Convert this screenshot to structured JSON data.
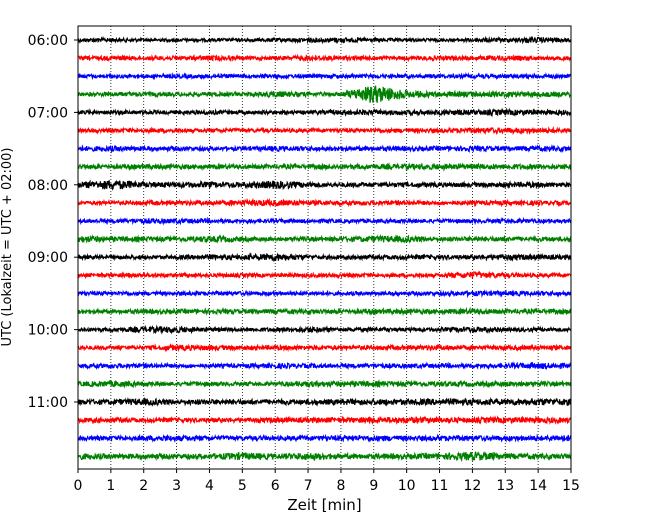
{
  "chart_data": {
    "type": "line",
    "title": "",
    "xlabel": "Zeit  [min]",
    "ylabel": "UTC (Lokalzeit = UTC + 02:00)",
    "xlim": [
      0,
      15
    ],
    "x_ticks": [
      0,
      1,
      2,
      3,
      4,
      5,
      6,
      7,
      8,
      9,
      10,
      11,
      12,
      13,
      14,
      15
    ],
    "y_tick_labels": [
      "06:00",
      "07:00",
      "08:00",
      "09:00",
      "10:00",
      "11:00"
    ],
    "grid": "vertical dotted",
    "legend": "none",
    "trace_colors": [
      "#000000",
      "#ff0000",
      "#0000ff",
      "#008000"
    ],
    "series": [
      {
        "start": "06:00",
        "values": [
          0.6,
          0.6,
          0.5,
          0.5,
          0.5,
          0.5,
          0.6,
          0.7,
          0.8,
          0.6,
          0.5,
          0.5,
          0.6,
          0.7,
          0.9,
          0.6
        ]
      },
      {
        "start": "06:15",
        "values": [
          0.6,
          0.7,
          0.6,
          0.7,
          0.8,
          0.6,
          0.6,
          0.8,
          0.7,
          0.6,
          0.6,
          0.7,
          0.6,
          0.8,
          0.6,
          0.6
        ]
      },
      {
        "start": "06:30",
        "values": [
          0.6,
          0.6,
          0.6,
          0.6,
          0.7,
          0.6,
          0.6,
          0.6,
          0.6,
          0.6,
          0.6,
          0.6,
          0.6,
          0.6,
          0.6,
          0.6
        ]
      },
      {
        "start": "06:45",
        "values": [
          0.6,
          0.7,
          0.7,
          0.6,
          0.7,
          0.6,
          1.0,
          0.7,
          0.6,
          3.0,
          1.2,
          0.8,
          0.9,
          0.8,
          0.8,
          0.7
        ]
      },
      {
        "start": "07:00",
        "values": [
          0.7,
          0.6,
          0.6,
          0.6,
          0.7,
          0.6,
          0.6,
          0.6,
          0.8,
          0.8,
          0.7,
          0.8,
          0.8,
          0.9,
          0.8,
          0.7
        ]
      },
      {
        "start": "07:15",
        "values": [
          0.6,
          0.6,
          0.7,
          0.6,
          0.6,
          0.6,
          0.6,
          0.6,
          0.6,
          0.6,
          0.7,
          0.7,
          0.8,
          0.9,
          0.8,
          0.7
        ]
      },
      {
        "start": "07:30",
        "values": [
          0.7,
          0.9,
          0.7,
          0.7,
          0.6,
          0.6,
          0.8,
          0.7,
          0.7,
          0.7,
          0.7,
          0.7,
          0.8,
          0.7,
          0.8,
          0.7
        ]
      },
      {
        "start": "07:45",
        "values": [
          0.7,
          0.7,
          0.8,
          0.7,
          0.7,
          0.7,
          0.7,
          0.7,
          0.8,
          0.8,
          0.8,
          0.9,
          0.8,
          0.8,
          0.8,
          0.7
        ]
      },
      {
        "start": "08:00",
        "values": [
          0.9,
          1.6,
          0.9,
          0.8,
          0.9,
          0.8,
          1.3,
          0.8,
          0.7,
          0.7,
          0.7,
          0.7,
          0.7,
          0.8,
          0.8,
          0.7
        ]
      },
      {
        "start": "08:15",
        "values": [
          0.6,
          0.6,
          0.7,
          0.7,
          0.7,
          0.9,
          1.0,
          0.8,
          0.7,
          0.7,
          0.7,
          0.6,
          0.7,
          0.7,
          0.7,
          0.6
        ]
      },
      {
        "start": "08:30",
        "values": [
          0.6,
          0.6,
          0.8,
          0.8,
          0.7,
          0.6,
          0.6,
          0.6,
          0.6,
          0.6,
          0.6,
          0.6,
          0.6,
          0.7,
          0.6,
          0.6
        ]
      },
      {
        "start": "08:45",
        "values": [
          1.1,
          0.8,
          0.8,
          0.7,
          1.0,
          0.7,
          0.6,
          0.7,
          0.7,
          1.0,
          1.0,
          0.7,
          0.7,
          0.8,
          0.7,
          0.7
        ]
      },
      {
        "start": "09:00",
        "values": [
          0.6,
          0.6,
          0.6,
          0.6,
          0.8,
          0.8,
          1.2,
          0.7,
          0.6,
          0.7,
          0.7,
          0.7,
          0.7,
          0.9,
          0.8,
          0.7
        ]
      },
      {
        "start": "09:15",
        "values": [
          0.6,
          0.6,
          0.6,
          0.6,
          0.6,
          0.6,
          0.6,
          0.6,
          0.6,
          0.6,
          0.6,
          0.6,
          1.1,
          0.7,
          0.6,
          0.6
        ]
      },
      {
        "start": "09:30",
        "values": [
          0.6,
          0.6,
          0.6,
          0.6,
          0.6,
          0.6,
          0.6,
          0.6,
          0.6,
          0.6,
          0.6,
          0.6,
          0.8,
          0.7,
          0.7,
          0.6
        ]
      },
      {
        "start": "09:45",
        "values": [
          0.7,
          0.6,
          0.7,
          0.7,
          0.7,
          0.7,
          0.7,
          0.7,
          0.7,
          0.8,
          0.8,
          0.7,
          0.9,
          0.7,
          0.7,
          0.7
        ]
      },
      {
        "start": "10:00",
        "values": [
          0.6,
          0.6,
          0.9,
          1.0,
          0.6,
          0.6,
          0.6,
          0.9,
          0.6,
          0.6,
          0.6,
          0.6,
          0.9,
          0.6,
          0.6,
          0.6
        ]
      },
      {
        "start": "10:15",
        "values": [
          0.6,
          0.6,
          0.6,
          0.9,
          0.8,
          0.7,
          0.7,
          0.7,
          0.7,
          0.7,
          0.7,
          0.8,
          0.7,
          0.7,
          0.7,
          0.7
        ]
      },
      {
        "start": "10:30",
        "values": [
          0.7,
          0.7,
          0.7,
          0.6,
          0.6,
          0.6,
          0.8,
          0.7,
          0.6,
          0.7,
          0.7,
          0.7,
          0.7,
          0.7,
          1.0,
          0.7
        ]
      },
      {
        "start": "10:45",
        "values": [
          0.7,
          1.0,
          0.7,
          0.6,
          0.7,
          0.6,
          0.6,
          0.9,
          0.8,
          0.9,
          0.7,
          0.8,
          0.7,
          0.8,
          0.7,
          0.7
        ]
      },
      {
        "start": "11:00",
        "values": [
          0.8,
          0.8,
          1.1,
          0.8,
          0.8,
          0.8,
          0.8,
          0.8,
          0.9,
          0.9,
          0.9,
          1.0,
          1.0,
          0.9,
          1.1,
          1.0
        ]
      },
      {
        "start": "11:15",
        "values": [
          0.7,
          0.8,
          0.7,
          0.7,
          0.7,
          0.7,
          0.8,
          0.8,
          0.8,
          0.9,
          1.0,
          0.9,
          0.8,
          0.9,
          0.9,
          0.8
        ]
      },
      {
        "start": "11:30",
        "values": [
          0.7,
          0.7,
          0.8,
          0.9,
          0.7,
          0.7,
          0.7,
          0.7,
          0.8,
          0.9,
          0.8,
          0.8,
          0.8,
          0.8,
          0.8,
          1.0
        ]
      },
      {
        "start": "11:45",
        "values": [
          1.0,
          0.8,
          0.8,
          0.8,
          0.8,
          1.2,
          0.8,
          1.2,
          0.8,
          0.8,
          0.8,
          0.9,
          1.4,
          0.9,
          0.8,
          0.8
        ]
      }
    ]
  }
}
